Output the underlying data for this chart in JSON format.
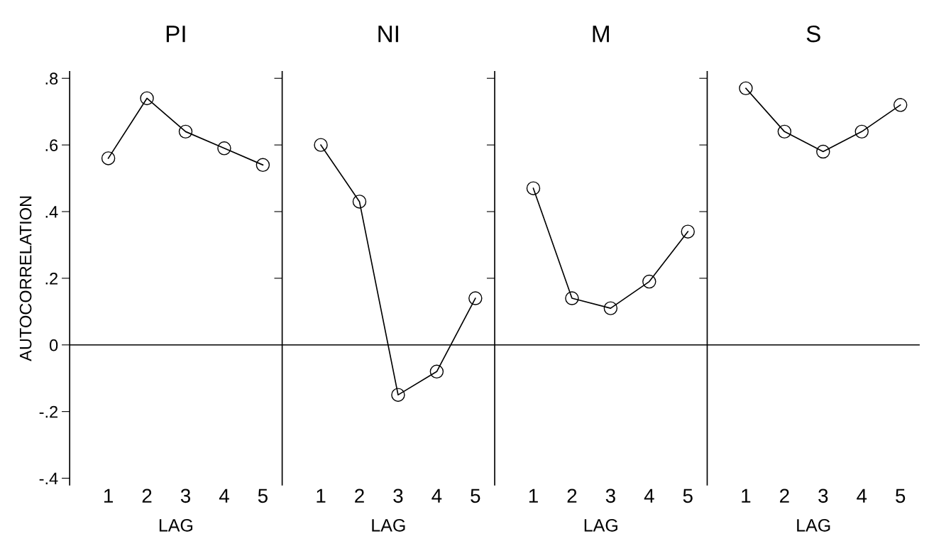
{
  "chart_data": [
    {
      "type": "line",
      "title": "PI",
      "xlabel": "LAG",
      "ylabel": "AUTOCORRELATION",
      "categories": [
        "1",
        "2",
        "3",
        "4",
        "5"
      ],
      "series": [
        {
          "color": "#000000",
          "values": [
            0.56,
            0.74,
            0.64,
            0.59,
            0.54
          ]
        }
      ],
      "ylim": [
        -0.42,
        0.82
      ],
      "yticks": [
        {
          "value": 0.8,
          "label": ".8"
        },
        {
          "value": 0.6,
          "label": ".6"
        },
        {
          "value": 0.4,
          "label": ".4"
        },
        {
          "value": 0.2,
          "label": ".2"
        },
        0,
        {
          "value": -0.2,
          "label": "-.2"
        },
        {
          "value": -0.4,
          "label": "-.4"
        }
      ],
      "ref_lines": [
        {
          "axis": "y",
          "value": 0,
          "color": "#000000"
        }
      ],
      "marker": "circle",
      "line_style": "solid",
      "grid": false,
      "legend": false
    },
    {
      "type": "line",
      "title": "NI",
      "xlabel": "LAG",
      "categories": [
        "1",
        "2",
        "3",
        "4",
        "5"
      ],
      "series": [
        {
          "color": "#000000",
          "values": [
            0.6,
            0.43,
            -0.15,
            -0.08,
            0.14
          ]
        }
      ],
      "ylim": [
        -0.42,
        0.82
      ],
      "yticks": [
        {
          "value": 0.8,
          "label": null
        },
        {
          "value": 0.6,
          "label": null
        },
        {
          "value": 0.4,
          "label": null
        },
        {
          "value": 0.2,
          "label": null
        }
      ],
      "tick_labels": "x",
      "ref_lines": [
        {
          "axis": "y",
          "value": 0,
          "color": "#000000"
        }
      ],
      "marker": "circle",
      "line_style": "solid",
      "grid": false,
      "legend": false
    },
    {
      "type": "line",
      "title": "M",
      "xlabel": "LAG",
      "categories": [
        "1",
        "2",
        "3",
        "4",
        "5"
      ],
      "series": [
        {
          "color": "#000000",
          "values": [
            0.47,
            0.14,
            0.11,
            0.19,
            0.34
          ]
        }
      ],
      "ylim": [
        -0.42,
        0.82
      ],
      "yticks": [
        {
          "value": 0.8,
          "label": null
        },
        {
          "value": 0.6,
          "label": null
        },
        {
          "value": 0.4,
          "label": null
        },
        {
          "value": 0.2,
          "label": null
        }
      ],
      "tick_labels": "x",
      "ref_lines": [
        {
          "axis": "y",
          "value": 0,
          "color": "#000000"
        }
      ],
      "marker": "circle",
      "line_style": "solid",
      "grid": false,
      "legend": false
    },
    {
      "type": "line",
      "title": "S",
      "xlabel": "LAG",
      "categories": [
        "1",
        "2",
        "3",
        "4",
        "5"
      ],
      "series": [
        {
          "color": "#000000",
          "values": [
            0.77,
            0.64,
            0.58,
            0.64,
            0.72
          ]
        }
      ],
      "ylim": [
        -0.42,
        0.82
      ],
      "yticks": [
        {
          "value": 0.8,
          "label": null
        },
        {
          "value": 0.6,
          "label": null
        },
        {
          "value": 0.4,
          "label": null
        },
        {
          "value": 0.2,
          "label": null
        }
      ],
      "tick_labels": "x",
      "ref_lines": [
        {
          "axis": "y",
          "value": 0,
          "color": "#000000"
        }
      ],
      "marker": "circle",
      "line_style": "solid",
      "grid": false,
      "legend": false
    }
  ]
}
